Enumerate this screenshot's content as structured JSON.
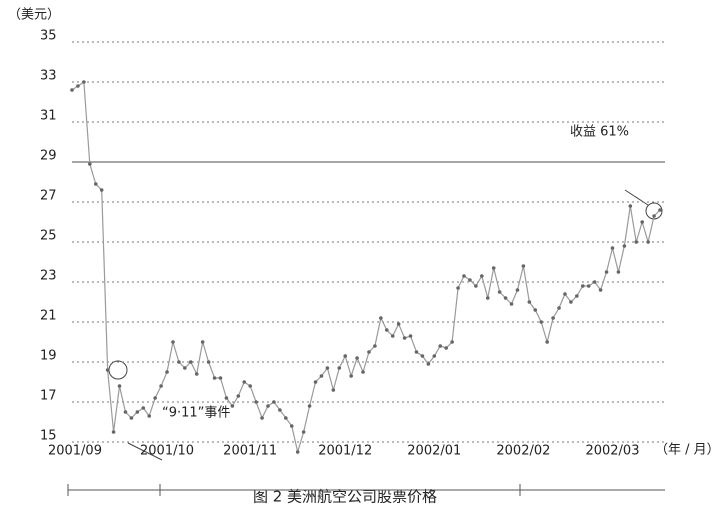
{
  "chart_data": {
    "type": "line",
    "title": "图 2 美洲航空公司股票价格",
    "y_label": "（美元）",
    "x_label": "（年 / 月）",
    "annotations": [
      "收益 61%",
      "“9·11”事件"
    ],
    "reference_line": 29,
    "color": "#9a9a9a",
    "marker_color": "#666666",
    "grid": true,
    "xlim": [
      0,
      99
    ],
    "xticks": [
      {
        "value": 0.5,
        "label": "2001/09"
      },
      {
        "value": 16,
        "label": "2001/10"
      },
      {
        "value": 30,
        "label": "2001/11"
      },
      {
        "value": 46,
        "label": "2001/12"
      },
      {
        "value": 61,
        "label": "2002/01"
      },
      {
        "value": 76,
        "label": "2002/02"
      },
      {
        "value": 91,
        "label": "2002/03"
      }
    ],
    "ylim": [
      14.3,
      35
    ],
    "yticks": [
      15,
      17,
      19,
      21,
      23,
      25,
      27,
      29,
      31,
      33,
      35
    ],
    "values": [
      32.6,
      32.8,
      33.0,
      28.9,
      27.9,
      27.6,
      18.6,
      15.5,
      17.8,
      16.5,
      16.2,
      16.5,
      16.7,
      16.3,
      17.2,
      17.8,
      18.5,
      20.0,
      19.0,
      18.7,
      19.0,
      18.4,
      20.0,
      19.0,
      18.2,
      18.2,
      17.2,
      16.8,
      17.3,
      18.0,
      17.8,
      17.0,
      16.2,
      16.8,
      17.0,
      16.6,
      16.2,
      15.8,
      14.5,
      15.5,
      16.8,
      18.0,
      18.3,
      18.7,
      17.6,
      18.7,
      19.3,
      18.3,
      19.2,
      18.5,
      19.5,
      19.8,
      21.2,
      20.6,
      20.3,
      20.9,
      20.2,
      20.3,
      19.5,
      19.3,
      18.9,
      19.3,
      19.8,
      19.7,
      20.0,
      22.7,
      23.3,
      23.1,
      22.8,
      23.3,
      22.2,
      23.7,
      22.5,
      22.2,
      21.9,
      22.6,
      23.8,
      22.0,
      21.6,
      21.0,
      20.0,
      21.2,
      21.7,
      22.4,
      22.0,
      22.3,
      22.8,
      22.8,
      23.0,
      22.6,
      23.5,
      24.7,
      23.5,
      24.8,
      26.8,
      25.0,
      26.0,
      25.0,
      26.3,
      26.6
    ]
  }
}
